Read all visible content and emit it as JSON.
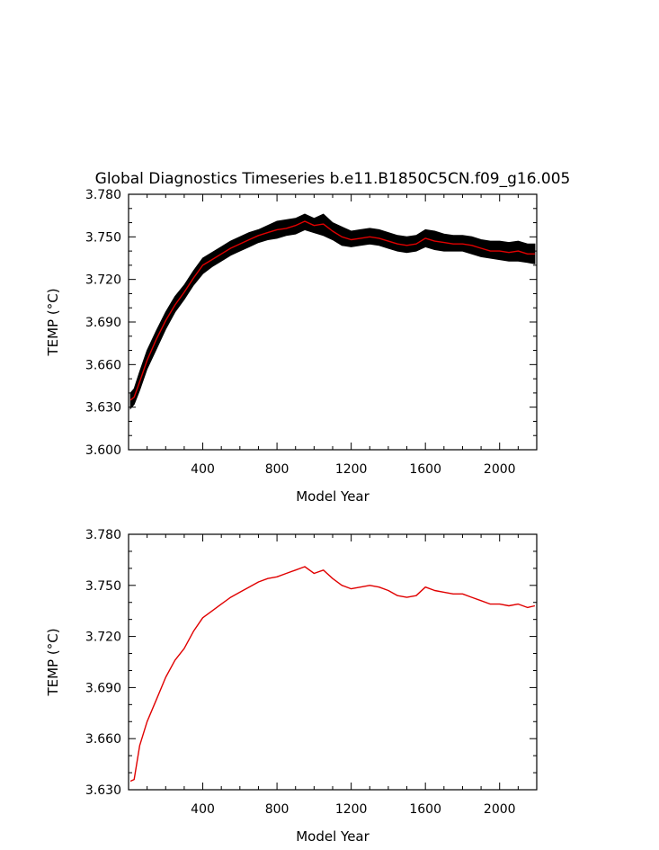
{
  "figure_title": "Global Diagnostics Timeseries b.e11.B1850C5CN.f09_g16.005",
  "colors": {
    "mean": "#e00000",
    "envelope": "#000000",
    "axes": "#000000"
  },
  "chart_data": [
    {
      "type": "line",
      "title": "Global Diagnostics Timeseries b.e11.B1850C5CN.f09_g16.005",
      "xlabel": "Model Year",
      "ylabel": "TEMP (°C)",
      "xlim": [
        0,
        2200
      ],
      "ylim": [
        3.6,
        3.78
      ],
      "xticks": [
        400,
        800,
        1200,
        1600,
        2000
      ],
      "xtick_labels": [
        "400",
        "800",
        "1200",
        "1600",
        "2000"
      ],
      "yticks": [
        3.6,
        3.63,
        3.66,
        3.69,
        3.72,
        3.75,
        3.78
      ],
      "ytick_labels": [
        "3.600",
        "3.630",
        "3.660",
        "3.690",
        "3.720",
        "3.750",
        "3.780"
      ],
      "grid": false,
      "series": [
        {
          "role": "envelope",
          "color": "#000000",
          "x": [
            10,
            30,
            60,
            100,
            150,
            200,
            250,
            300,
            350,
            400,
            450,
            500,
            550,
            600,
            650,
            700,
            750,
            800,
            850,
            900,
            950,
            1000,
            1050,
            1100,
            1150,
            1200,
            1250,
            1300,
            1350,
            1400,
            1450,
            1500,
            1550,
            1600,
            1650,
            1700,
            1750,
            1800,
            1850,
            1900,
            1950,
            2000,
            2050,
            2100,
            2150,
            2190
          ],
          "upper": [
            3.64,
            3.643,
            3.655,
            3.67,
            3.684,
            3.697,
            3.708,
            3.716,
            3.726,
            3.735,
            3.739,
            3.743,
            3.747,
            3.75,
            3.753,
            3.755,
            3.758,
            3.761,
            3.762,
            3.763,
            3.766,
            3.763,
            3.766,
            3.76,
            3.757,
            3.754,
            3.755,
            3.756,
            3.755,
            3.753,
            3.751,
            3.75,
            3.751,
            3.755,
            3.754,
            3.752,
            3.751,
            3.751,
            3.75,
            3.748,
            3.747,
            3.747,
            3.746,
            3.747,
            3.745,
            3.745
          ],
          "lower": [
            3.629,
            3.632,
            3.642,
            3.657,
            3.671,
            3.685,
            3.697,
            3.706,
            3.716,
            3.724,
            3.729,
            3.733,
            3.737,
            3.74,
            3.743,
            3.746,
            3.748,
            3.749,
            3.751,
            3.752,
            3.755,
            3.753,
            3.751,
            3.748,
            3.744,
            3.743,
            3.744,
            3.745,
            3.744,
            3.742,
            3.74,
            3.739,
            3.74,
            3.743,
            3.741,
            3.74,
            3.74,
            3.74,
            3.738,
            3.736,
            3.735,
            3.734,
            3.733,
            3.733,
            3.732,
            3.731
          ]
        },
        {
          "role": "mean",
          "color": "#e00000",
          "x": [
            10,
            30,
            60,
            100,
            150,
            200,
            250,
            300,
            350,
            400,
            450,
            500,
            550,
            600,
            650,
            700,
            750,
            800,
            850,
            900,
            950,
            1000,
            1050,
            1100,
            1150,
            1200,
            1250,
            1300,
            1350,
            1400,
            1450,
            1500,
            1550,
            1600,
            1650,
            1700,
            1750,
            1800,
            1850,
            1900,
            1950,
            2000,
            2050,
            2100,
            2150,
            2190
          ],
          "y": [
            3.635,
            3.637,
            3.648,
            3.663,
            3.678,
            3.691,
            3.702,
            3.711,
            3.721,
            3.73,
            3.734,
            3.738,
            3.742,
            3.745,
            3.748,
            3.751,
            3.753,
            3.755,
            3.756,
            3.758,
            3.761,
            3.758,
            3.759,
            3.754,
            3.75,
            3.748,
            3.749,
            3.75,
            3.749,
            3.747,
            3.745,
            3.744,
            3.745,
            3.749,
            3.747,
            3.746,
            3.745,
            3.745,
            3.744,
            3.742,
            3.74,
            3.74,
            3.739,
            3.74,
            3.738,
            3.738
          ]
        }
      ]
    },
    {
      "type": "line",
      "title": "",
      "xlabel": "Model Year",
      "ylabel": "TEMP (°C)",
      "xlim": [
        0,
        2200
      ],
      "ylim": [
        3.63,
        3.78
      ],
      "xticks": [
        400,
        800,
        1200,
        1600,
        2000
      ],
      "xtick_labels": [
        "400",
        "800",
        "1200",
        "1600",
        "2000"
      ],
      "yticks": [
        3.63,
        3.66,
        3.69,
        3.72,
        3.75,
        3.78
      ],
      "ytick_labels": [
        "3.630",
        "3.660",
        "3.690",
        "3.720",
        "3.750",
        "3.780"
      ],
      "grid": false,
      "series": [
        {
          "role": "mean",
          "color": "#e00000",
          "x": [
            10,
            30,
            60,
            100,
            150,
            200,
            250,
            300,
            350,
            400,
            450,
            500,
            550,
            600,
            650,
            700,
            750,
            800,
            850,
            900,
            950,
            1000,
            1050,
            1100,
            1150,
            1200,
            1250,
            1300,
            1350,
            1400,
            1450,
            1500,
            1550,
            1600,
            1650,
            1700,
            1750,
            1800,
            1850,
            1900,
            1950,
            2000,
            2050,
            2100,
            2150,
            2190
          ],
          "y": [
            3.635,
            3.636,
            3.656,
            3.67,
            3.683,
            3.696,
            3.706,
            3.713,
            3.723,
            3.731,
            3.735,
            3.739,
            3.743,
            3.746,
            3.749,
            3.752,
            3.754,
            3.755,
            3.757,
            3.759,
            3.761,
            3.757,
            3.759,
            3.754,
            3.75,
            3.748,
            3.749,
            3.75,
            3.749,
            3.747,
            3.744,
            3.743,
            3.744,
            3.749,
            3.747,
            3.746,
            3.745,
            3.745,
            3.743,
            3.741,
            3.739,
            3.739,
            3.738,
            3.739,
            3.737,
            3.738
          ]
        }
      ]
    }
  ]
}
